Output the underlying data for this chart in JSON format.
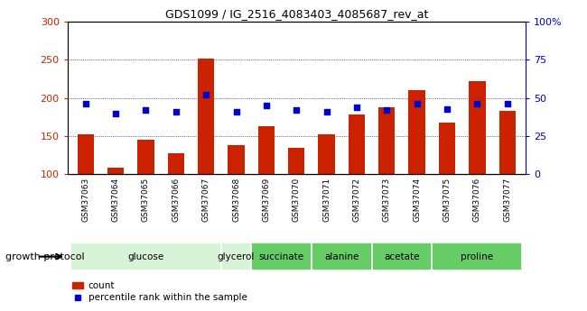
{
  "title": "GDS1099 / IG_2516_4083403_4085687_rev_at",
  "samples": [
    "GSM37063",
    "GSM37064",
    "GSM37065",
    "GSM37066",
    "GSM37067",
    "GSM37068",
    "GSM37069",
    "GSM37070",
    "GSM37071",
    "GSM37072",
    "GSM37073",
    "GSM37074",
    "GSM37075",
    "GSM37076",
    "GSM37077"
  ],
  "counts": [
    152,
    108,
    145,
    128,
    252,
    138,
    163,
    135,
    152,
    178,
    188,
    210,
    168,
    222,
    183
  ],
  "percentiles": [
    46,
    40,
    42,
    41,
    52,
    41,
    45,
    42,
    41,
    44,
    42,
    46,
    43,
    46,
    46
  ],
  "group_defs": [
    {
      "label": "glucose",
      "indices": [
        0,
        1,
        2,
        3,
        4
      ],
      "color": "#d8f4d8"
    },
    {
      "label": "glycerol",
      "indices": [
        5
      ],
      "color": "#d8f4d8"
    },
    {
      "label": "succinate",
      "indices": [
        6,
        7
      ],
      "color": "#66cc66"
    },
    {
      "label": "alanine",
      "indices": [
        8,
        9
      ],
      "color": "#66cc66"
    },
    {
      "label": "acetate",
      "indices": [
        10,
        11
      ],
      "color": "#66cc66"
    },
    {
      "label": "proline",
      "indices": [
        12,
        13,
        14
      ],
      "color": "#66cc66"
    }
  ],
  "ylim_left": [
    100,
    300
  ],
  "ylim_right": [
    0,
    100
  ],
  "yticks_left": [
    100,
    150,
    200,
    250,
    300
  ],
  "yticks_right": [
    0,
    25,
    50,
    75,
    100
  ],
  "ytick_labels_right": [
    "0",
    "25",
    "50",
    "75",
    "100%"
  ],
  "bar_color": "#cc2200",
  "dot_color": "#0000cc",
  "gray_bg": "#cccccc",
  "growth_protocol_label": "growth protocol"
}
